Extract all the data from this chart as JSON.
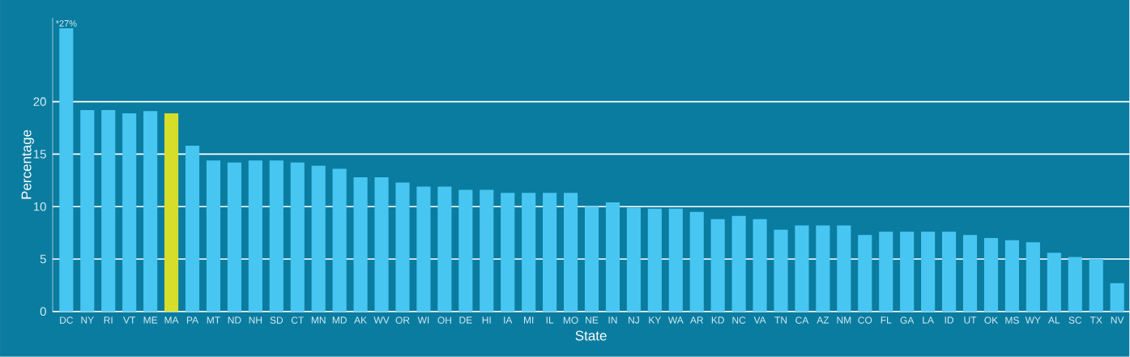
{
  "chart_data": {
    "type": "bar",
    "xlabel": "State",
    "ylabel": "Percentage",
    "categories": [
      "DC",
      "NY",
      "RI",
      "VT",
      "ME",
      "MA",
      "PA",
      "MT",
      "ND",
      "NH",
      "SD",
      "CT",
      "MN",
      "MD",
      "AK",
      "WV",
      "OR",
      "WI",
      "OH",
      "DE",
      "HI",
      "IA",
      "MI",
      "IL",
      "MO",
      "NE",
      "IN",
      "NJ",
      "KY",
      "WA",
      "AR",
      "KD",
      "NC",
      "VA",
      "TN",
      "CA",
      "AZ",
      "NM",
      "CO",
      "FL",
      "GA",
      "LA",
      "ID",
      "UT",
      "OK",
      "MS",
      "WY",
      "AL",
      "SC",
      "TX",
      "NV"
    ],
    "values": [
      27,
      19.2,
      19.2,
      18.9,
      19.1,
      18.9,
      15.8,
      14.4,
      14.2,
      14.4,
      14.4,
      14.2,
      13.9,
      13.6,
      12.8,
      12.8,
      12.3,
      11.9,
      11.9,
      11.6,
      11.6,
      11.3,
      11.3,
      11.3,
      11.3,
      10.0,
      10.4,
      9.9,
      9.8,
      9.8,
      9.5,
      8.8,
      9.1,
      8.8,
      7.8,
      8.2,
      8.2,
      8.2,
      7.3,
      7.6,
      7.6,
      7.6,
      7.6,
      7.3,
      7.0,
      6.8,
      6.6,
      5.6,
      5.2,
      5.0,
      2.7
    ],
    "colors": [
      "#48c6f2",
      "#48c6f2",
      "#48c6f2",
      "#48c6f2",
      "#48c6f2",
      "#d6de2a",
      "#48c6f2",
      "#48c6f2",
      "#48c6f2",
      "#48c6f2",
      "#48c6f2",
      "#48c6f2",
      "#48c6f2",
      "#48c6f2",
      "#48c6f2",
      "#48c6f2",
      "#48c6f2",
      "#48c6f2",
      "#48c6f2",
      "#48c6f2",
      "#48c6f2",
      "#48c6f2",
      "#48c6f2",
      "#48c6f2",
      "#48c6f2",
      "#48c6f2",
      "#48c6f2",
      "#48c6f2",
      "#48c6f2",
      "#48c6f2",
      "#48c6f2",
      "#48c6f2",
      "#48c6f2",
      "#48c6f2",
      "#48c6f2",
      "#48c6f2",
      "#48c6f2",
      "#48c6f2",
      "#48c6f2",
      "#48c6f2",
      "#48c6f2",
      "#48c6f2",
      "#48c6f2",
      "#48c6f2",
      "#48c6f2",
      "#48c6f2",
      "#48c6f2",
      "#48c6f2",
      "#48c6f2",
      "#48c6f2",
      "#48c6f2"
    ],
    "ylim": [
      0,
      28
    ],
    "yticks": [
      0,
      5,
      10,
      15,
      20
    ],
    "grid": "y",
    "annotations": [
      {
        "text": "*27%",
        "x": "DC",
        "y": 27
      }
    ]
  }
}
